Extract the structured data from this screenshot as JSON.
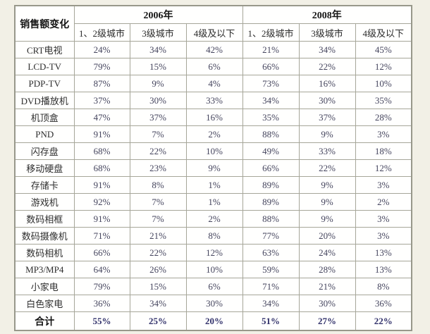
{
  "page": {
    "background_color": "#f2f0e6",
    "cell_color": "#fffffe",
    "border_color": "#a6a699",
    "value_text_color": "#45455e"
  },
  "table": {
    "corner_label": "销售额变化",
    "year_groups": [
      "2006年",
      "2008年"
    ],
    "sub_headers": [
      "1、2级城市",
      "3级城市",
      "4级及以下",
      "1、2级城市",
      "3级城市",
      "4级及以下"
    ],
    "rows": [
      {
        "label": "CRT电视",
        "values": [
          "24%",
          "34%",
          "42%",
          "21%",
          "34%",
          "45%"
        ],
        "bold": false
      },
      {
        "label": "LCD-TV",
        "values": [
          "79%",
          "15%",
          "6%",
          "66%",
          "22%",
          "12%"
        ],
        "bold": false
      },
      {
        "label": "PDP-TV",
        "values": [
          "87%",
          "9%",
          "4%",
          "73%",
          "16%",
          "10%"
        ],
        "bold": false
      },
      {
        "label": "DVD播放机",
        "values": [
          "37%",
          "30%",
          "33%",
          "34%",
          "30%",
          "35%"
        ],
        "bold": false
      },
      {
        "label": "机顶盒",
        "values": [
          "47%",
          "37%",
          "16%",
          "35%",
          "37%",
          "28%"
        ],
        "bold": false
      },
      {
        "label": "PND",
        "values": [
          "91%",
          "7%",
          "2%",
          "88%",
          "9%",
          "3%"
        ],
        "bold": false
      },
      {
        "label": "闪存盘",
        "values": [
          "68%",
          "22%",
          "10%",
          "49%",
          "33%",
          "18%"
        ],
        "bold": false
      },
      {
        "label": "移动硬盘",
        "values": [
          "68%",
          "23%",
          "9%",
          "66%",
          "22%",
          "12%"
        ],
        "bold": false
      },
      {
        "label": "存储卡",
        "values": [
          "91%",
          "8%",
          "1%",
          "89%",
          "9%",
          "3%"
        ],
        "bold": false
      },
      {
        "label": "游戏机",
        "values": [
          "92%",
          "7%",
          "1%",
          "89%",
          "9%",
          "2%"
        ],
        "bold": false
      },
      {
        "label": "数码相框",
        "values": [
          "91%",
          "7%",
          "2%",
          "88%",
          "9%",
          "3%"
        ],
        "bold": false
      },
      {
        "label": "数码摄像机",
        "values": [
          "71%",
          "21%",
          "8%",
          "77%",
          "20%",
          "3%"
        ],
        "bold": false
      },
      {
        "label": "数码相机",
        "values": [
          "66%",
          "22%",
          "12%",
          "63%",
          "24%",
          "13%"
        ],
        "bold": false
      },
      {
        "label": "MP3/MP4",
        "values": [
          "64%",
          "26%",
          "10%",
          "59%",
          "28%",
          "13%"
        ],
        "bold": false
      },
      {
        "label": "小家电",
        "values": [
          "79%",
          "15%",
          "6%",
          "71%",
          "21%",
          "8%"
        ],
        "bold": false
      },
      {
        "label": "白色家电",
        "values": [
          "36%",
          "34%",
          "30%",
          "34%",
          "30%",
          "36%"
        ],
        "bold": false
      },
      {
        "label": "合计",
        "values": [
          "55%",
          "25%",
          "20%",
          "51%",
          "27%",
          "22%"
        ],
        "bold": true
      }
    ]
  },
  "chart_data": {
    "type": "table",
    "title": "销售额变化",
    "column_groups": [
      "2006年",
      "2008年"
    ],
    "columns": [
      "2006年 1、2级城市",
      "2006年 3级城市",
      "2006年 4级及以下",
      "2008年 1、2级城市",
      "2008年 3级城市",
      "2008年 4级及以下"
    ],
    "categories": [
      "CRT电视",
      "LCD-TV",
      "PDP-TV",
      "DVD播放机",
      "机顶盒",
      "PND",
      "闪存盘",
      "移动硬盘",
      "存储卡",
      "游戏机",
      "数码相框",
      "数码摄像机",
      "数码相机",
      "MP3/MP4",
      "小家电",
      "白色家电",
      "合计"
    ],
    "values_percent": [
      [
        24,
        34,
        42,
        21,
        34,
        45
      ],
      [
        79,
        15,
        6,
        66,
        22,
        12
      ],
      [
        87,
        9,
        4,
        73,
        16,
        10
      ],
      [
        37,
        30,
        33,
        34,
        30,
        35
      ],
      [
        47,
        37,
        16,
        35,
        37,
        28
      ],
      [
        91,
        7,
        2,
        88,
        9,
        3
      ],
      [
        68,
        22,
        10,
        49,
        33,
        18
      ],
      [
        68,
        23,
        9,
        66,
        22,
        12
      ],
      [
        91,
        8,
        1,
        89,
        9,
        3
      ],
      [
        92,
        7,
        1,
        89,
        9,
        2
      ],
      [
        91,
        7,
        2,
        88,
        9,
        3
      ],
      [
        71,
        21,
        8,
        77,
        20,
        3
      ],
      [
        66,
        22,
        12,
        63,
        24,
        13
      ],
      [
        64,
        26,
        10,
        59,
        28,
        13
      ],
      [
        79,
        15,
        6,
        71,
        21,
        8
      ],
      [
        36,
        34,
        30,
        34,
        30,
        36
      ],
      [
        55,
        25,
        20,
        51,
        27,
        22
      ]
    ]
  }
}
